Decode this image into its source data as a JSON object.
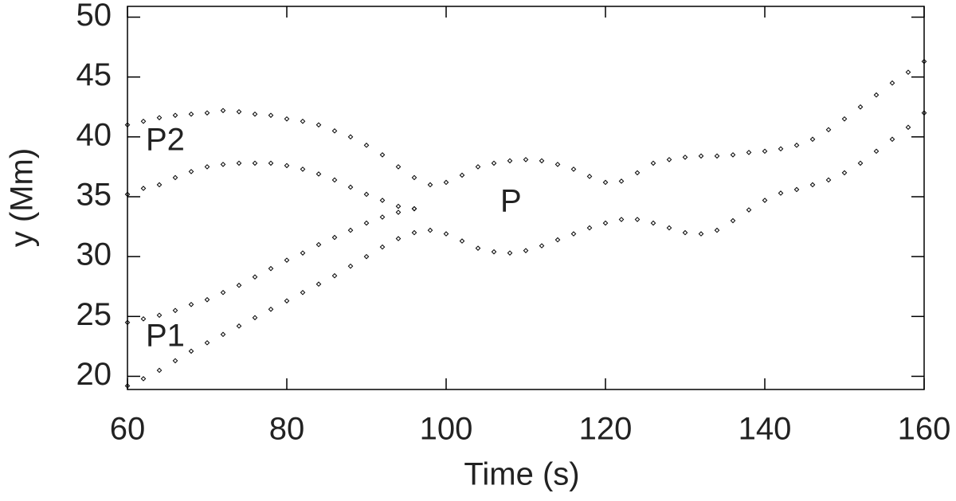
{
  "chart_data": {
    "type": "scatter",
    "xlabel": "Time (s)",
    "ylabel": "y (Mm)",
    "xlim": [
      60,
      160
    ],
    "xticks": [
      60,
      80,
      100,
      120,
      140,
      160
    ],
    "ylim": [
      18.9,
      50.9
    ],
    "yticks": [
      20,
      25,
      30,
      35,
      40,
      45,
      50
    ],
    "annotations": [
      "P2",
      "P1",
      "P"
    ],
    "color": "#000000",
    "series": [
      {
        "x": [
          60,
          62,
          64,
          66,
          68,
          70,
          72,
          74,
          76,
          78,
          80,
          82,
          84,
          86,
          88,
          90,
          92,
          94,
          96,
          98,
          100,
          102,
          104,
          106,
          108,
          110,
          112,
          114,
          116,
          118,
          120,
          122,
          124,
          126,
          128,
          130,
          132,
          134,
          136,
          138,
          140,
          142,
          144,
          146,
          148,
          150,
          152,
          154,
          156,
          158,
          160
        ],
        "values": [
          41.0,
          41.3,
          41.6,
          41.8,
          41.9,
          42.0,
          42.2,
          42.1,
          41.9,
          41.8,
          41.5,
          41.3,
          41.0,
          40.5,
          40.0,
          39.3,
          38.5,
          37.5,
          36.6,
          36.0,
          36.2,
          36.8,
          37.5,
          37.8,
          38.0,
          38.1,
          38.0,
          37.7,
          37.3,
          36.7,
          36.2,
          36.3,
          37.0,
          37.8,
          38.1,
          38.3,
          38.4,
          38.4,
          38.5,
          38.7,
          38.8,
          39.0,
          39.3,
          39.8,
          40.6,
          41.5,
          42.5,
          43.5,
          44.5,
          45.4,
          46.3
        ]
      },
      {
        "x": [
          60,
          62,
          64,
          66,
          68,
          70,
          72,
          74,
          76,
          78,
          80,
          82,
          84,
          86,
          88,
          90,
          92,
          94,
          96
        ],
        "values": [
          35.2,
          35.7,
          36.0,
          36.6,
          37.1,
          37.5,
          37.7,
          37.8,
          37.8,
          37.8,
          37.6,
          37.3,
          36.9,
          36.4,
          35.8,
          35.2,
          34.7,
          34.2,
          34.0
        ]
      },
      {
        "x": [
          60,
          62,
          64,
          66,
          68,
          70,
          72,
          74,
          76,
          78,
          80,
          82,
          84,
          86,
          88,
          90,
          92,
          94,
          96
        ],
        "values": [
          24.5,
          24.8,
          25.1,
          25.5,
          26.0,
          26.4,
          27.0,
          27.6,
          28.3,
          29.0,
          29.7,
          30.3,
          31.0,
          31.6,
          32.2,
          32.8,
          33.3,
          33.7,
          34.0
        ]
      },
      {
        "x": [
          60,
          62,
          64,
          66,
          68,
          70,
          72,
          74,
          76,
          78,
          80,
          82,
          84,
          86,
          88,
          90,
          92,
          94,
          96,
          98,
          100,
          102,
          104,
          106,
          108,
          110,
          112,
          114,
          116,
          118,
          120,
          122,
          124,
          126,
          128,
          130,
          132,
          134,
          136,
          138,
          140,
          142,
          144,
          146,
          148,
          150,
          152,
          154,
          156,
          158,
          160
        ],
        "values": [
          19.2,
          19.8,
          20.5,
          21.3,
          22.1,
          22.8,
          23.5,
          24.2,
          24.9,
          25.6,
          26.3,
          27.0,
          27.7,
          28.4,
          29.2,
          30.0,
          30.8,
          31.5,
          32.0,
          32.2,
          31.9,
          31.3,
          30.7,
          30.4,
          30.3,
          30.5,
          30.9,
          31.4,
          31.9,
          32.4,
          32.8,
          33.1,
          33.1,
          32.8,
          32.4,
          32.0,
          31.9,
          32.2,
          33.0,
          33.9,
          34.7,
          35.3,
          35.6,
          36.0,
          36.4,
          37.0,
          37.8,
          38.8,
          39.8,
          40.8,
          42.0
        ]
      }
    ]
  }
}
